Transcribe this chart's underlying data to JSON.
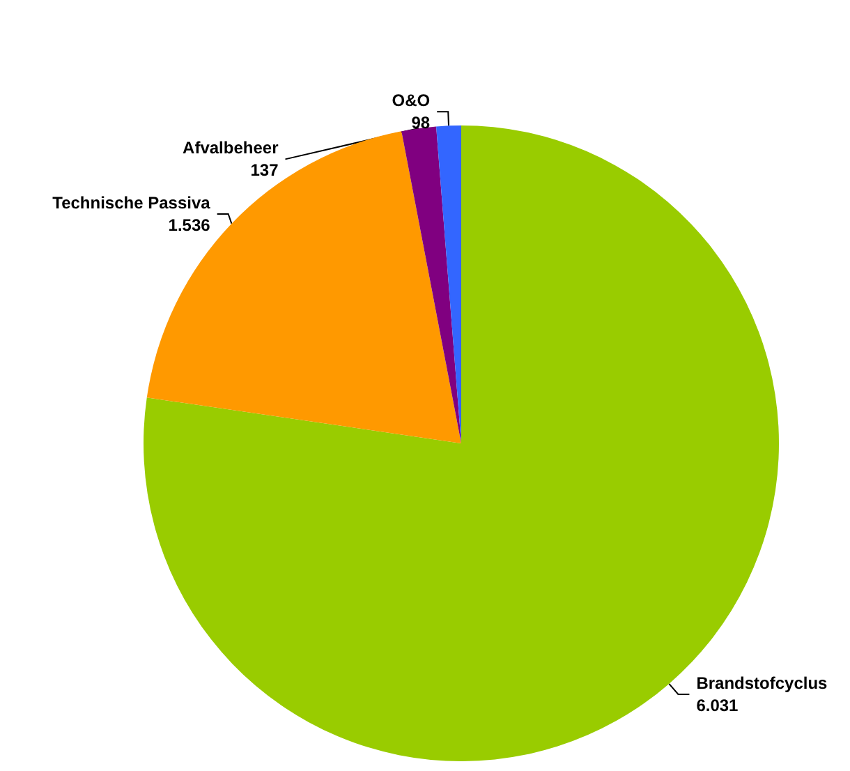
{
  "chart_data": {
    "type": "pie",
    "categories": [
      "Brandstofcyclus",
      "Technische Passiva",
      "Afvalbeheer",
      "O&O"
    ],
    "values": [
      6031,
      1536,
      137,
      98
    ],
    "value_labels": [
      "6.031",
      "1.536",
      "137",
      "98"
    ],
    "colors": [
      "#99cc00",
      "#ff9900",
      "#800080",
      "#3366ff"
    ]
  }
}
